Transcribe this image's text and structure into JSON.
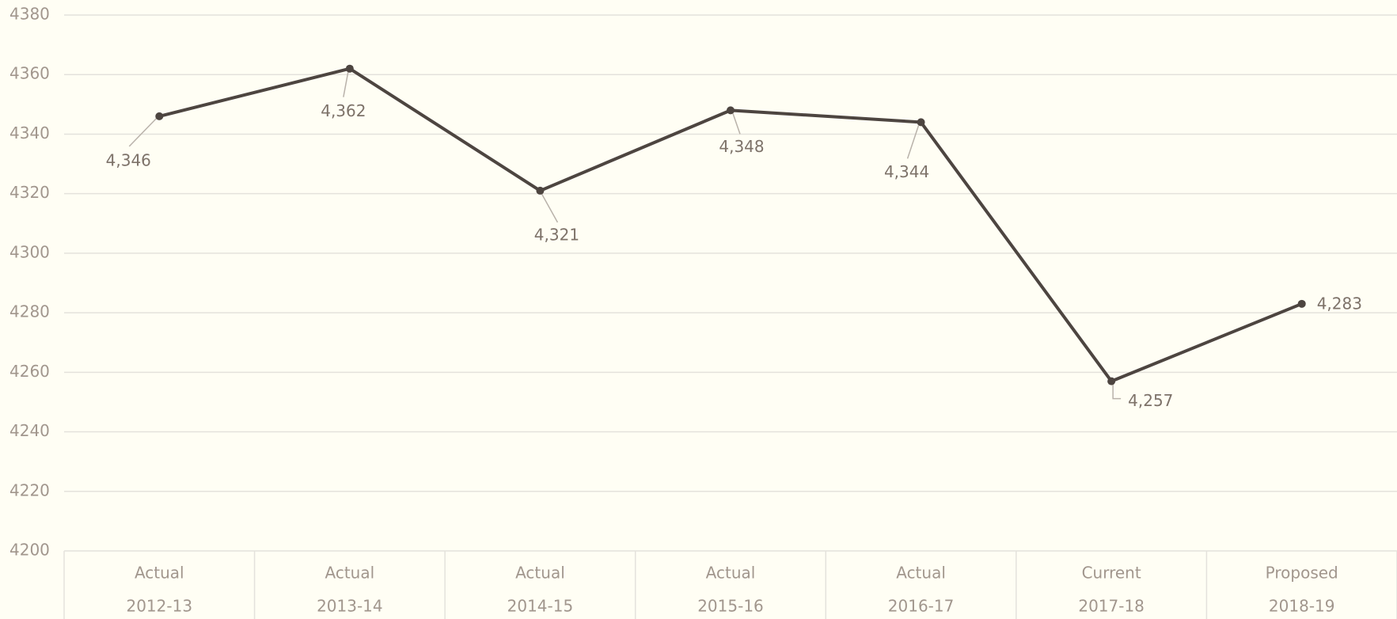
{
  "chart_data": {
    "type": "line",
    "category_labels": [
      "Actual",
      "Actual",
      "Actual",
      "Actual",
      "Actual",
      "Current",
      "Proposed"
    ],
    "categories": [
      "2012-13",
      "2013-14",
      "2014-15",
      "2015-16",
      "2016-17",
      "2017-18",
      "2018-19"
    ],
    "values": [
      4346,
      4362,
      4321,
      4348,
      4344,
      4257,
      4283
    ],
    "value_labels": [
      "4,346",
      "4,362",
      "4,321",
      "4,348",
      "4,344",
      "4,257",
      "4,283"
    ],
    "color": "#4d4540",
    "ylim": [
      4200,
      4380
    ],
    "yticks": [
      4200,
      4220,
      4240,
      4260,
      4280,
      4300,
      4320,
      4340,
      4360,
      4380
    ],
    "grid": true
  }
}
